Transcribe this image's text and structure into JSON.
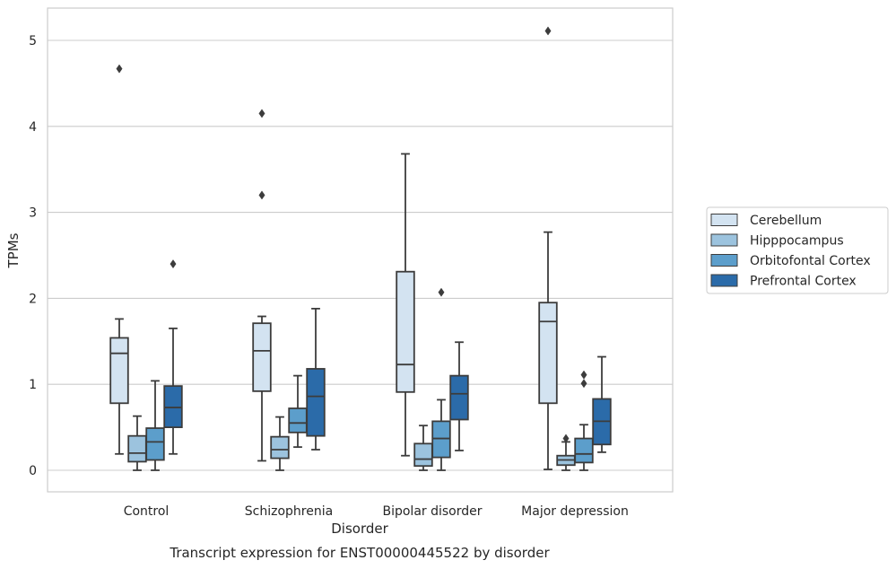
{
  "chart_data": {
    "type": "box",
    "caption": "Transcript expression for ENST00000445522 by disorder",
    "xlabel": "Disorder",
    "ylabel": "TPMs",
    "ylim": [
      -0.25,
      5.38
    ],
    "yticks": [
      "0",
      "1",
      "2",
      "3",
      "4",
      "5"
    ],
    "grid": "horizontal",
    "legend_position": "right",
    "categories": [
      "Control",
      "Schizophrenia",
      "Bipolar disorder",
      "Major depression"
    ],
    "series": [
      {
        "name": "Cerebellum",
        "color": "#d3e3f1",
        "boxes": [
          {
            "whislo": 0.19,
            "q1": 0.78,
            "med": 1.36,
            "q3": 1.54,
            "whishi": 1.76,
            "fliers": [
              4.67
            ]
          },
          {
            "whislo": 0.11,
            "q1": 0.92,
            "med": 1.39,
            "q3": 1.71,
            "whishi": 1.79,
            "fliers": [
              4.15,
              3.2
            ]
          },
          {
            "whislo": 0.17,
            "q1": 0.91,
            "med": 1.23,
            "q3": 2.31,
            "whishi": 3.68,
            "fliers": []
          },
          {
            "whislo": 0.01,
            "q1": 0.78,
            "med": 1.73,
            "q3": 1.95,
            "whishi": 2.77,
            "fliers": [
              5.11
            ]
          }
        ]
      },
      {
        "name": "Hipppocampus",
        "color": "#9cc3de",
        "boxes": [
          {
            "whislo": 0.0,
            "q1": 0.1,
            "med": 0.2,
            "q3": 0.4,
            "whishi": 0.63,
            "fliers": []
          },
          {
            "whislo": 0.0,
            "q1": 0.14,
            "med": 0.24,
            "q3": 0.39,
            "whishi": 0.62,
            "fliers": []
          },
          {
            "whislo": 0.0,
            "q1": 0.05,
            "med": 0.13,
            "q3": 0.31,
            "whishi": 0.52,
            "fliers": []
          },
          {
            "whislo": 0.0,
            "q1": 0.06,
            "med": 0.12,
            "q3": 0.17,
            "whishi": 0.33,
            "fliers": [
              0.37
            ]
          }
        ]
      },
      {
        "name": "Orbitofontal Cortex",
        "color": "#5c9ecb",
        "boxes": [
          {
            "whislo": 0.0,
            "q1": 0.12,
            "med": 0.33,
            "q3": 0.49,
            "whishi": 1.04,
            "fliers": []
          },
          {
            "whislo": 0.27,
            "q1": 0.44,
            "med": 0.55,
            "q3": 0.72,
            "whishi": 1.1,
            "fliers": []
          },
          {
            "whislo": 0.0,
            "q1": 0.15,
            "med": 0.37,
            "q3": 0.57,
            "whishi": 0.82,
            "fliers": [
              2.07
            ]
          },
          {
            "whislo": 0.0,
            "q1": 0.09,
            "med": 0.19,
            "q3": 0.37,
            "whishi": 0.53,
            "fliers": [
              1.11,
              1.01
            ]
          }
        ]
      },
      {
        "name": "Prefrontal Cortex",
        "color": "#2b6ba9",
        "boxes": [
          {
            "whislo": 0.19,
            "q1": 0.5,
            "med": 0.73,
            "q3": 0.98,
            "whishi": 1.65,
            "fliers": [
              2.4
            ]
          },
          {
            "whislo": 0.24,
            "q1": 0.4,
            "med": 0.86,
            "q3": 1.18,
            "whishi": 1.88,
            "fliers": []
          },
          {
            "whislo": 0.23,
            "q1": 0.59,
            "med": 0.89,
            "q3": 1.1,
            "whishi": 1.49,
            "fliers": []
          },
          {
            "whislo": 0.21,
            "q1": 0.3,
            "med": 0.57,
            "q3": 0.83,
            "whishi": 1.32,
            "fliers": []
          }
        ]
      }
    ]
  }
}
